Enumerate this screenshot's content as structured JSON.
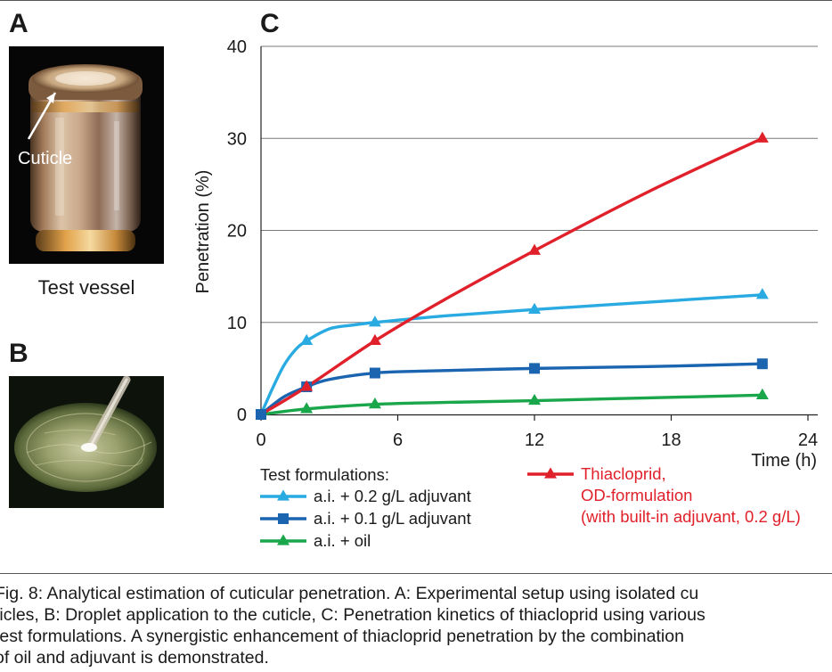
{
  "panels": {
    "a": "A",
    "b": "B",
    "c": "C"
  },
  "photo_a": {
    "annotation": "Cuticle",
    "label": "Test vessel"
  },
  "chart_data": {
    "type": "line",
    "ylabel": "Penetration (%)",
    "xlabel": "Time (h)",
    "xlim": [
      0,
      24
    ],
    "ylim": [
      0,
      40
    ],
    "xticks": [
      0,
      6,
      12,
      18,
      24
    ],
    "yticks": [
      0,
      10,
      20,
      30,
      40
    ],
    "grid": "horizontal",
    "legend_heading": "Test formulations:",
    "series": [
      {
        "name": "a.i. + 0.2 g/L adjuvant",
        "color": "#29abe2",
        "marker": "triangle",
        "points": [
          [
            0,
            0
          ],
          [
            2,
            8
          ],
          [
            5,
            10
          ],
          [
            12,
            11.4
          ],
          [
            22,
            13
          ]
        ],
        "curve": [
          [
            0,
            0
          ],
          [
            0.5,
            2.8
          ],
          [
            1,
            5.3
          ],
          [
            1.5,
            7
          ],
          [
            2,
            8
          ],
          [
            3,
            9.3
          ],
          [
            4,
            9.7
          ],
          [
            5,
            10
          ],
          [
            8,
            10.7
          ],
          [
            12,
            11.4
          ],
          [
            17,
            12.2
          ],
          [
            22,
            13
          ]
        ]
      },
      {
        "name": "a.i. + 0.1 g/L adjuvant",
        "color": "#1a64b0",
        "marker": "square",
        "points": [
          [
            0,
            0
          ],
          [
            2,
            3
          ],
          [
            5,
            4.5
          ],
          [
            12,
            5
          ],
          [
            22,
            5.5
          ]
        ],
        "curve": [
          [
            0,
            0
          ],
          [
            1,
            1.9
          ],
          [
            2,
            3
          ],
          [
            3,
            3.8
          ],
          [
            5,
            4.5
          ],
          [
            7,
            4.7
          ],
          [
            12,
            5
          ],
          [
            17,
            5.2
          ],
          [
            22,
            5.5
          ]
        ]
      },
      {
        "name": "a.i. + oil",
        "color": "#1aa64a",
        "marker": "triangle",
        "points": [
          [
            0,
            0
          ],
          [
            2,
            0.6
          ],
          [
            5,
            1.1
          ],
          [
            12,
            1.5
          ],
          [
            22,
            2.1
          ]
        ],
        "curve": [
          [
            0,
            0
          ],
          [
            2,
            0.6
          ],
          [
            5,
            1.1
          ],
          [
            8,
            1.3
          ],
          [
            12,
            1.5
          ],
          [
            17,
            1.8
          ],
          [
            22,
            2.1
          ]
        ]
      },
      {
        "name": "Thiacloprid, OD-formulation (with built-in adjuvant, 0.2 g/L)",
        "name_lines": [
          "Thiacloprid,",
          "OD-formulation",
          "(with built-in adjuvant, 0.2 g/L)"
        ],
        "color": "#e0202a",
        "marker": "triangle",
        "points": [
          [
            0,
            0
          ],
          [
            2,
            3
          ],
          [
            5,
            8
          ],
          [
            12,
            17.8
          ],
          [
            22,
            30
          ]
        ],
        "curve": [
          [
            0,
            0
          ],
          [
            2,
            3
          ],
          [
            5,
            8
          ],
          [
            8,
            12.4
          ],
          [
            12,
            17.8
          ],
          [
            17,
            24.2
          ],
          [
            22,
            30
          ]
        ]
      }
    ]
  },
  "caption": {
    "lines": [
      "Fig. 8: Analytical estimation of cuticular penetration. A: Experimental setup using isolated cu",
      "ticles, B: Droplet application to the cuticle, C: Penetration kinetics of thiacloprid using various",
      "test formulations. A synergistic enhancement of thiacloprid penetration by the combination",
      "of oil and adjuvant is demonstrated."
    ]
  }
}
